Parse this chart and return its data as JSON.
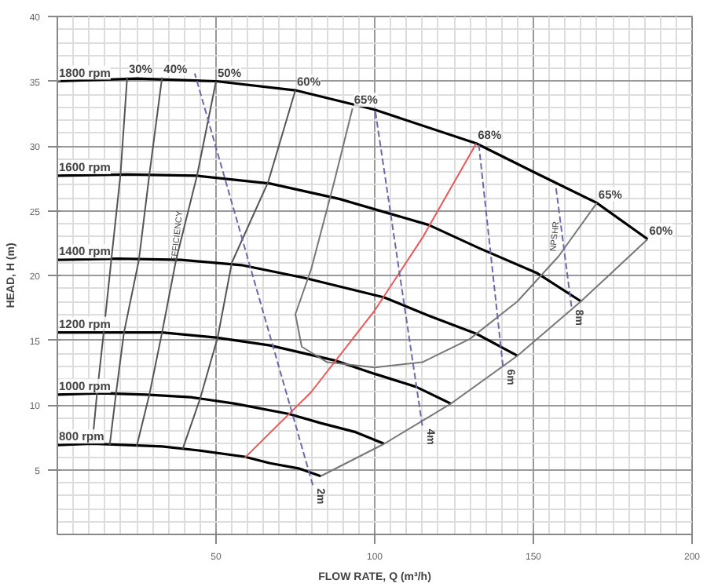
{
  "chart_data": {
    "type": "line",
    "xlabel": "FLOW RATE, Q (m³/h)",
    "ylabel": "HEAD, H (m)",
    "xlim": [
      0,
      200
    ],
    "ylim": [
      0,
      40
    ],
    "xticks": [
      50,
      100,
      150,
      200
    ],
    "yticks": [
      5,
      10,
      15,
      20,
      25,
      30,
      35,
      40
    ],
    "grid": true,
    "marker": "none",
    "annotations": [
      {
        "text": "EFFICIENCY",
        "x": 38,
        "y": 23
      },
      {
        "text": "NPSHR",
        "x": 157,
        "y": 23
      },
      {
        "text": "65%",
        "x": 170,
        "y": 25.6
      }
    ],
    "series": [
      {
        "name": "1800 rpm",
        "color": "#000000",
        "x": [
          0,
          25,
          50,
          75,
          100,
          132,
          150,
          170,
          186
        ],
        "values": [
          35,
          35.2,
          35,
          34.3,
          32.8,
          30.2,
          28,
          25.6,
          22.8
        ]
      },
      {
        "name": "1600 rpm",
        "color": "#000000",
        "x": [
          0,
          22,
          44,
          67,
          89,
          117,
          133,
          151,
          165
        ],
        "values": [
          27.7,
          27.8,
          27.7,
          27.1,
          25.9,
          23.9,
          22.1,
          20.2,
          18.0
        ]
      },
      {
        "name": "1400 rpm",
        "color": "#000000",
        "x": [
          0,
          19,
          39,
          58,
          78,
          103,
          117,
          132,
          145
        ],
        "values": [
          21.2,
          21.3,
          21.2,
          20.8,
          19.8,
          18.3,
          16.9,
          15.5,
          13.8
        ]
      },
      {
        "name": "1200 rpm",
        "color": "#000000",
        "x": [
          0,
          17,
          33,
          50,
          67,
          88,
          100,
          113,
          124
        ],
        "values": [
          15.6,
          15.6,
          15.6,
          15.2,
          14.6,
          13.4,
          12.4,
          11.4,
          10.1
        ]
      },
      {
        "name": "1000 rpm",
        "color": "#000000",
        "x": [
          0,
          14,
          28,
          42,
          56,
          73,
          83,
          94,
          103
        ],
        "values": [
          10.8,
          10.9,
          10.8,
          10.6,
          10.1,
          9.3,
          8.6,
          7.9,
          7.0
        ]
      },
      {
        "name": "800 rpm",
        "color": "#000000",
        "x": [
          0,
          11,
          22,
          33,
          44,
          59,
          67,
          76,
          83
        ],
        "values": [
          6.9,
          7.0,
          6.9,
          6.8,
          6.5,
          6.0,
          5.5,
          5.1,
          4.5
        ]
      },
      {
        "name": "30%",
        "color": "#555555",
        "x": [
          22,
          19.9,
          17,
          14.6,
          12.5,
          11
        ],
        "values": [
          35.3,
          27.8,
          21.2,
          15.6,
          10.9,
          7.0
        ]
      },
      {
        "name": "40%",
        "color": "#555555",
        "x": [
          33,
          29,
          25.7,
          21,
          18.5,
          16.5
        ],
        "values": [
          35.3,
          27.8,
          21.2,
          15.6,
          10.9,
          6.9
        ]
      },
      {
        "name": "50%",
        "color": "#555555",
        "x": [
          50,
          44,
          37.4,
          33,
          29,
          25
        ],
        "values": [
          35,
          27.7,
          21.2,
          15.6,
          10.8,
          6.8
        ]
      },
      {
        "name": "60%",
        "color": "#555555",
        "x": [
          75,
          66.4,
          55,
          50.5,
          45,
          39.5
        ],
        "values": [
          34.3,
          27.2,
          21.0,
          15.2,
          10.5,
          6.6
        ]
      },
      {
        "name": "65%",
        "color": "#777777",
        "x": [
          93,
          87,
          80,
          75,
          77,
          85,
          100,
          115,
          130,
          145,
          158,
          170
        ],
        "values": [
          32.9,
          27,
          20.5,
          17,
          14.5,
          13.3,
          12.9,
          13.3,
          15.1,
          18,
          21.5,
          25.6
        ]
      },
      {
        "name": "60%",
        "color": "#777777",
        "x": [
          186,
          165,
          145,
          124,
          103,
          83
        ],
        "values": [
          22.8,
          18.0,
          13.8,
          10.1,
          7.0,
          4.5
        ]
      },
      {
        "name": "68%",
        "color": "#ee5555",
        "x": [
          132,
          115,
          100,
          80,
          59
        ],
        "values": [
          30.2,
          22.9,
          17.3,
          11,
          5.9
        ]
      },
      {
        "name": "2m",
        "color": "#6a6aaa",
        "line_style": "dashed",
        "x": [
          80.5,
          43.3
        ],
        "values": [
          3.8,
          35.6
        ]
      },
      {
        "name": "4m",
        "color": "#6a6aaa",
        "line_style": "dashed",
        "x": [
          115,
          100
        ],
        "values": [
          8.4,
          33
        ]
      },
      {
        "name": "6m",
        "color": "#6a6aaa",
        "line_style": "dashed",
        "x": [
          140.4,
          132.8
        ],
        "values": [
          13,
          30.1
        ]
      },
      {
        "name": "8m",
        "color": "#6a6aaa",
        "line_style": "dashed",
        "x": [
          162,
          157
        ],
        "values": [
          17.6,
          27
        ]
      }
    ]
  }
}
